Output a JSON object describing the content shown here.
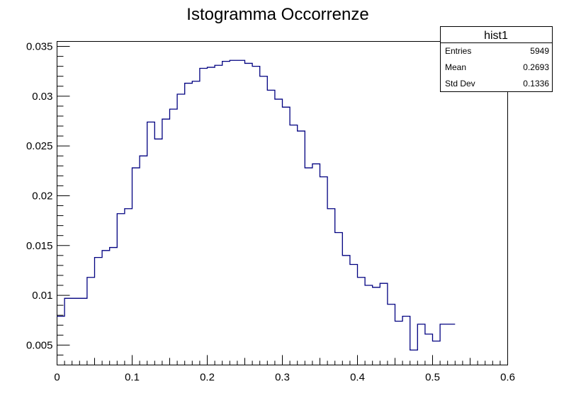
{
  "chart_data": {
    "type": "histogram",
    "title": "Istogramma Occorrenze",
    "xlabel": "",
    "ylabel": "",
    "xlim": [
      0,
      0.6
    ],
    "ylim": [
      0.003,
      0.0355
    ],
    "bin_width": 0.01,
    "x_ticks": [
      "0",
      "0.1",
      "0.2",
      "0.3",
      "0.4",
      "0.5",
      "0.6"
    ],
    "y_ticks": [
      "0.005",
      "0.01",
      "0.015",
      "0.02",
      "0.025",
      "0.03",
      "0.035"
    ],
    "line_color": "#000080",
    "grid": false,
    "values": [
      0.0079,
      0.0097,
      0.0097,
      0.0097,
      0.0118,
      0.0138,
      0.0145,
      0.0148,
      0.0182,
      0.0187,
      0.0228,
      0.024,
      0.0274,
      0.0257,
      0.0277,
      0.0287,
      0.0302,
      0.0313,
      0.0315,
      0.0328,
      0.0329,
      0.0331,
      0.0335,
      0.0336,
      0.0336,
      0.0333,
      0.033,
      0.032,
      0.0306,
      0.0297,
      0.0289,
      0.0271,
      0.0265,
      0.0228,
      0.0232,
      0.0219,
      0.0187,
      0.0163,
      0.014,
      0.0131,
      0.0118,
      0.011,
      0.0108,
      0.0112,
      0.0091,
      0.0074,
      0.0079,
      0.0045,
      0.0071,
      0.0061,
      0.0054,
      0.0071,
      0.0071
    ]
  },
  "stats_box": {
    "name": "hist1",
    "rows": [
      {
        "label": "Entries",
        "value": "5949"
      },
      {
        "label": "Mean",
        "value": "0.2693"
      },
      {
        "label": "Std Dev",
        "value": "0.1336"
      }
    ]
  }
}
